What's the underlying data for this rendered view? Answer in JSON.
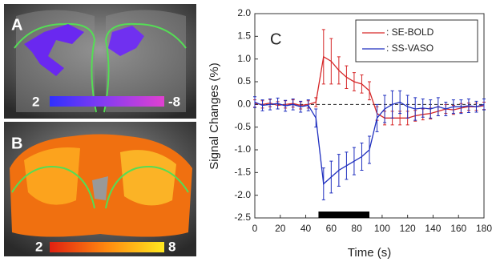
{
  "panels": [
    {
      "label": "A",
      "colorbar": {
        "min_label": "2",
        "max_label": "-8"
      }
    },
    {
      "label": "B",
      "colorbar": {
        "min_label": "2",
        "max_label": "8"
      }
    }
  ],
  "chart_data": {
    "type": "line",
    "panel_label": "C",
    "xlabel": "Time (s)",
    "ylabel": "Signal Changes (%)",
    "x": [
      0,
      6,
      12,
      18,
      24,
      30,
      36,
      42,
      48,
      54,
      60,
      66,
      72,
      78,
      84,
      90,
      96,
      102,
      108,
      114,
      120,
      126,
      132,
      138,
      144,
      150,
      156,
      162,
      168,
      174,
      180
    ],
    "series": [
      {
        "name": ": SE-BOLD",
        "color": "#d62728",
        "values": [
          0.02,
          0.0,
          0.03,
          -0.02,
          0.0,
          0.02,
          -0.02,
          0.0,
          0.05,
          1.05,
          0.95,
          0.75,
          0.6,
          0.5,
          0.45,
          0.3,
          -0.2,
          -0.3,
          -0.3,
          -0.3,
          -0.3,
          -0.25,
          -0.22,
          -0.2,
          -0.15,
          -0.1,
          -0.12,
          -0.08,
          -0.05,
          -0.05,
          -0.03
        ],
        "errors": [
          0.08,
          0.08,
          0.08,
          0.08,
          0.08,
          0.08,
          0.08,
          0.08,
          0.1,
          0.6,
          0.5,
          0.3,
          0.25,
          0.2,
          0.2,
          0.2,
          0.15,
          0.15,
          0.15,
          0.15,
          0.15,
          0.12,
          0.12,
          0.12,
          0.1,
          0.1,
          0.1,
          0.1,
          0.08,
          0.08,
          0.08
        ]
      },
      {
        "name": ": SS-VASO",
        "color": "#1f2fbf",
        "values": [
          0.05,
          -0.02,
          0.0,
          0.02,
          -0.03,
          0.0,
          -0.05,
          -0.02,
          -0.3,
          -1.75,
          -1.6,
          -1.45,
          -1.35,
          -1.25,
          -1.15,
          -1.0,
          -0.3,
          -0.1,
          0.0,
          0.05,
          -0.05,
          -0.1,
          -0.08,
          -0.1,
          -0.05,
          -0.1,
          -0.05,
          -0.05,
          -0.03,
          -0.05,
          0.0
        ],
        "errors": [
          0.12,
          0.12,
          0.12,
          0.12,
          0.12,
          0.12,
          0.12,
          0.12,
          0.2,
          0.35,
          0.35,
          0.35,
          0.3,
          0.3,
          0.3,
          0.3,
          0.3,
          0.3,
          0.3,
          0.25,
          0.25,
          0.25,
          0.2,
          0.2,
          0.2,
          0.15,
          0.15,
          0.15,
          0.15,
          0.12,
          0.12
        ]
      }
    ],
    "stimulus": [
      50,
      90
    ],
    "xlim": [
      0,
      180
    ],
    "xticks": [
      0,
      20,
      40,
      60,
      80,
      100,
      120,
      140,
      160,
      180
    ],
    "ylim": [
      -2.5,
      2.0
    ],
    "yticks": [
      {
        "value": -2.5,
        "label": "-2.5"
      },
      {
        "value": -2.0,
        "label": "-2.0"
      },
      {
        "value": -1.5,
        "label": "-1.5"
      },
      {
        "value": -1.0,
        "label": "-1.0"
      },
      {
        "value": -0.5,
        "label": "-0.5"
      },
      {
        "value": 0,
        "label": "0.0"
      },
      {
        "value": 0.5,
        "label": "0.5"
      },
      {
        "value": 1.0,
        "label": "1.0"
      },
      {
        "value": 1.5,
        "label": "1.5"
      },
      {
        "value": 2.0,
        "label": "2.0"
      }
    ],
    "legend": "upper right"
  }
}
